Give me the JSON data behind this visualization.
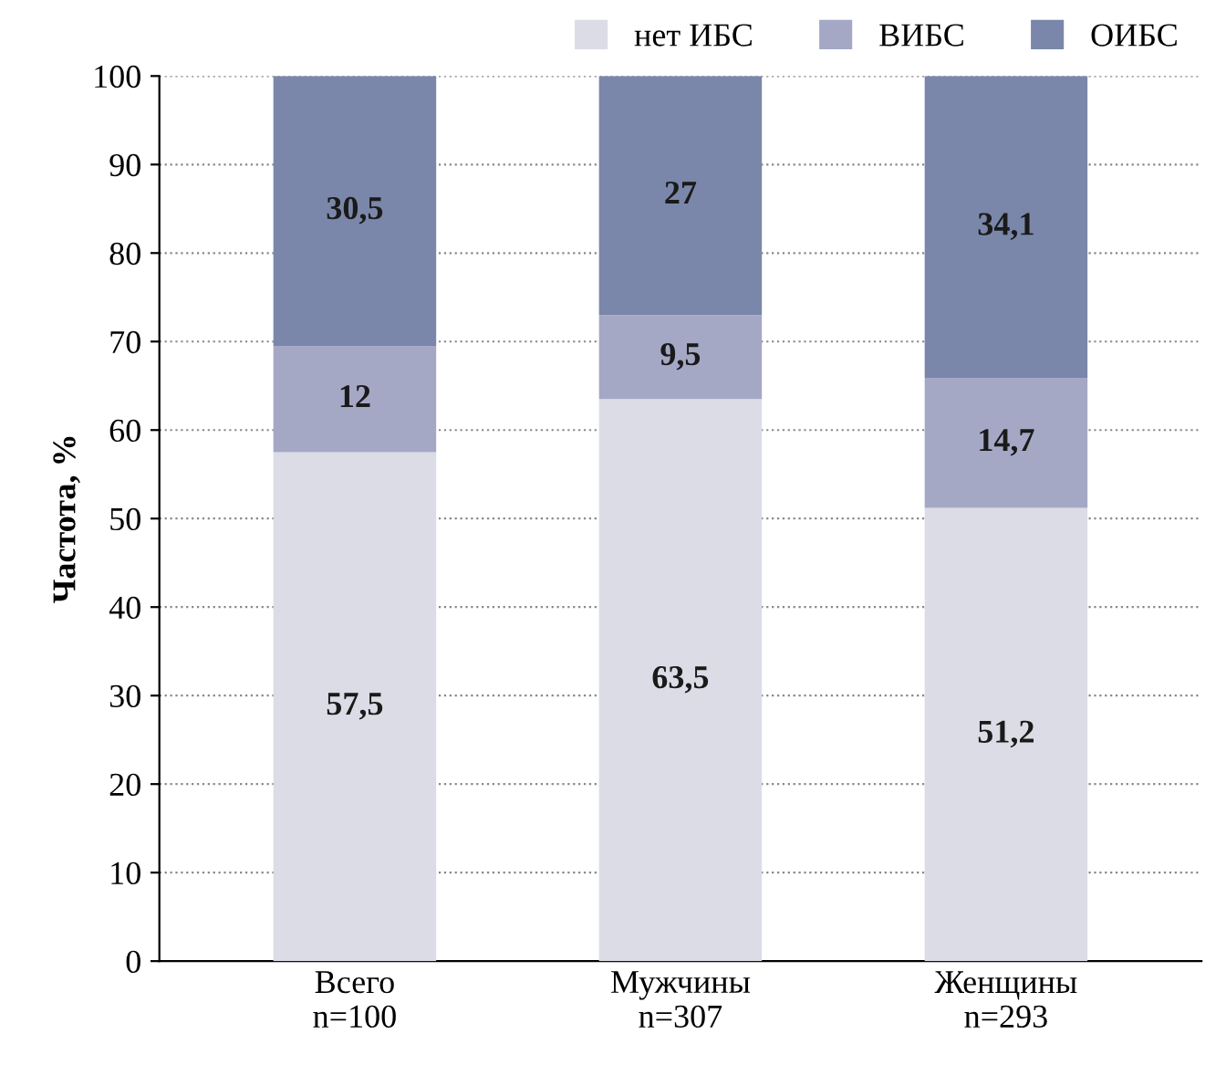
{
  "chart_data": {
    "type": "bar",
    "stacked": true,
    "ylabel": "Частота, %",
    "categories": [
      "Всего\nn=100",
      "Мужчины\nn=307",
      "Женщины\nn=293"
    ],
    "series": [
      {
        "name": "нет ИБС",
        "color": "#dcdce6",
        "values": [
          57.5,
          63.5,
          51.2
        ],
        "value_labels": [
          "57,5",
          "63,5",
          "51,2"
        ]
      },
      {
        "name": "ВИБС",
        "color": "#a4a8c5",
        "values": [
          12,
          9.5,
          14.7
        ],
        "value_labels": [
          "12",
          "9,5",
          "14,7"
        ]
      },
      {
        "name": "ОИБС",
        "color": "#7a87aa",
        "values": [
          30.5,
          27,
          34.1
        ],
        "value_labels": [
          "30,5",
          "27",
          "34,1"
        ]
      }
    ],
    "ylim": [
      0,
      100
    ],
    "yticks": [
      0,
      10,
      20,
      30,
      40,
      50,
      60,
      70,
      80,
      90,
      100
    ],
    "grid": "y",
    "legend": "top right"
  }
}
